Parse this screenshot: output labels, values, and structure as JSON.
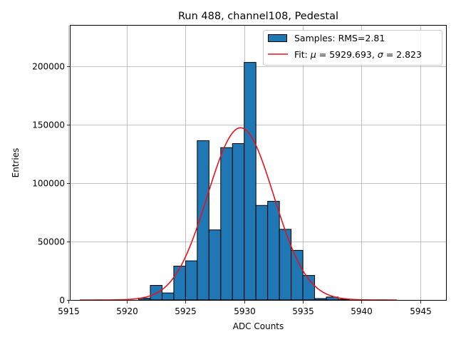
{
  "chart_data": {
    "type": "bar",
    "title": "Run 488, channel108, Pedestal",
    "xlabel": "ADC Counts",
    "ylabel": "Entries",
    "xlim": [
      5915.2,
      5947.2
    ],
    "ylim": [
      0,
      235000
    ],
    "grid": true,
    "legend_position": "top-right",
    "x_ticks": [
      5915,
      5920,
      5925,
      5930,
      5935,
      5940,
      5945
    ],
    "y_ticks": [
      0,
      50000,
      100000,
      150000,
      200000
    ],
    "histogram": {
      "name": "Samples: RMS=2.81",
      "bin_edges": [
        5921,
        5922,
        5923,
        5924,
        5925,
        5926,
        5927,
        5928,
        5929,
        5930,
        5931,
        5932,
        5933,
        5934,
        5935,
        5936,
        5937,
        5938,
        5939
      ],
      "counts": [
        1500,
        12500,
        6000,
        29000,
        33500,
        136500,
        60000,
        130500,
        134000,
        203500,
        81000,
        84500,
        60500,
        42500,
        21000,
        1200,
        2500,
        600
      ],
      "color": "#1f77b4",
      "edge_color": "#000000"
    },
    "fit": {
      "name_prefix": "Fit: ",
      "mu_symbol": "μ",
      "mu_value": " = 5929.693, ",
      "sigma_symbol": "σ",
      "sigma_value": " = 2.823",
      "mu": 5929.693,
      "sigma": 2.823,
      "amplitude": 147500,
      "x_range": [
        5916,
        5943
      ],
      "color": "#e8121c"
    }
  }
}
